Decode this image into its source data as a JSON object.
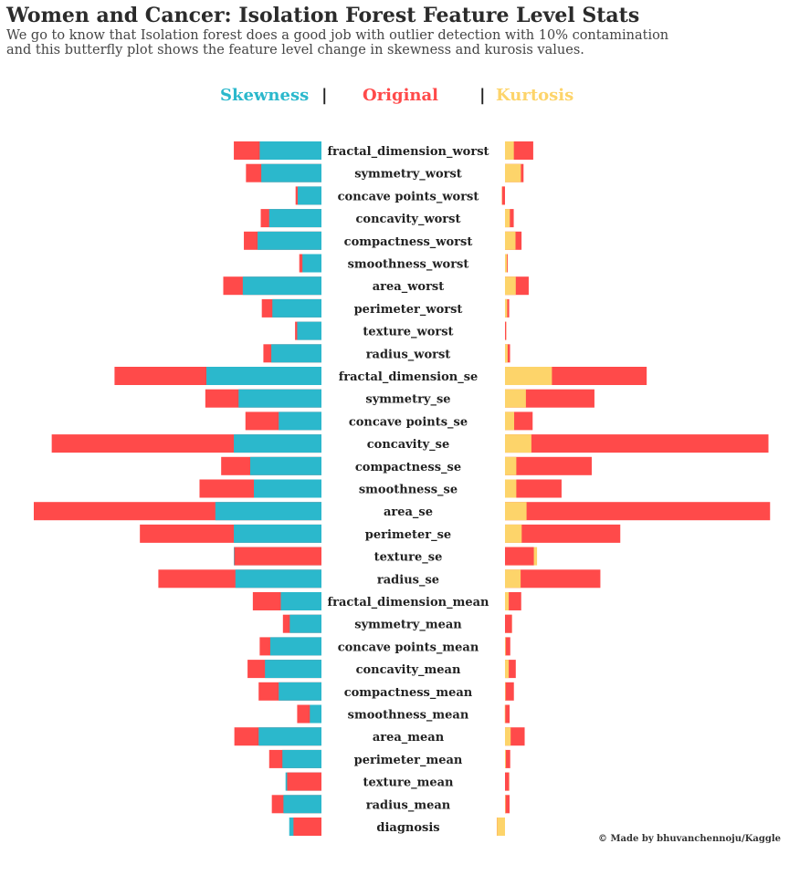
{
  "header": {
    "title": "Women and Cancer: Isolation Forest Feature Level Stats",
    "subtitle_line1": "We go to know that Isolation forest does a good job with outlier detection with 10% contamination",
    "subtitle_line2": "and this butterfly plot shows the feature level change in skewness and kurosis values."
  },
  "legend": {
    "skewness": "Skewness",
    "sep1": "|",
    "original": "Original",
    "sep2": "|",
    "kurtosis": "Kurtosis"
  },
  "colors": {
    "skewness": "#2bb8cc",
    "original": "#ff4a4a",
    "kurtosis": "#fdd46a",
    "separator": "#222222"
  },
  "credit": "© Made by bhuvanchennoju/Kaggle",
  "chart_data": {
    "type": "bar",
    "layout": "butterfly",
    "categories": [
      "fractal_dimension_worst",
      "symmetry_worst",
      "concave points_worst",
      "concavity_worst",
      "compactness_worst",
      "smoothness_worst",
      "area_worst",
      "perimeter_worst",
      "texture_worst",
      "radius_worst",
      "fractal_dimension_se",
      "symmetry_se",
      "concave points_se",
      "concavity_se",
      "compactness_se",
      "smoothness_se",
      "area_se",
      "perimeter_se",
      "texture_se",
      "radius_se",
      "fractal_dimension_mean",
      "symmetry_mean",
      "concave points_mean",
      "concavity_mean",
      "compactness_mean",
      "smoothness_mean",
      "area_mean",
      "perimeter_mean",
      "texture_mean",
      "radius_mean",
      "diagnosis"
    ],
    "skewness": {
      "original": [
        1.66,
        1.43,
        0.49,
        1.15,
        1.47,
        0.42,
        1.86,
        1.13,
        0.5,
        1.1,
        3.92,
        2.2,
        1.44,
        5.11,
        1.9,
        2.31,
        5.45,
        3.44,
        1.65,
        3.09,
        1.3,
        0.73,
        1.17,
        1.4,
        1.19,
        0.46,
        1.65,
        0.99,
        0.65,
        0.94,
        0.53
      ],
      "after_outlier_removal": [
        1.17,
        1.14,
        0.45,
        0.99,
        1.21,
        0.36,
        1.49,
        0.93,
        0.46,
        0.95,
        2.18,
        1.57,
        0.81,
        1.66,
        1.35,
        1.28,
        2.01,
        1.66,
        1.66,
        1.63,
        0.77,
        0.6,
        0.97,
        1.07,
        0.81,
        0.22,
        1.19,
        0.74,
        0.68,
        0.72,
        0.61
      ]
    },
    "kurtosis": {
      "original": [
        5.24,
        3.44,
        -0.54,
        1.62,
        3.07,
        0.52,
        4.4,
        0.78,
        0.22,
        0.94,
        26.3,
        16.6,
        5.13,
        48.9,
        16.1,
        10.5,
        49.2,
        21.4,
        5.35,
        17.7,
        3.01,
        1.29,
        0.98,
        2.0,
        1.65,
        0.86,
        3.65,
        0.97,
        0.76,
        0.85,
        -1.53
      ],
      "after_outlier_removal": [
        1.64,
        2.95,
        -0.6,
        0.9,
        1.95,
        0.37,
        2.0,
        0.41,
        0.24,
        0.49,
        8.71,
        3.88,
        1.7,
        4.9,
        2.1,
        2.1,
        4.0,
        3.1,
        5.95,
        2.9,
        0.7,
        1.3,
        0.12,
        0.7,
        0.08,
        -0.05,
        1.05,
        0.15,
        0.8,
        0.1,
        -1.5
      ]
    }
  }
}
